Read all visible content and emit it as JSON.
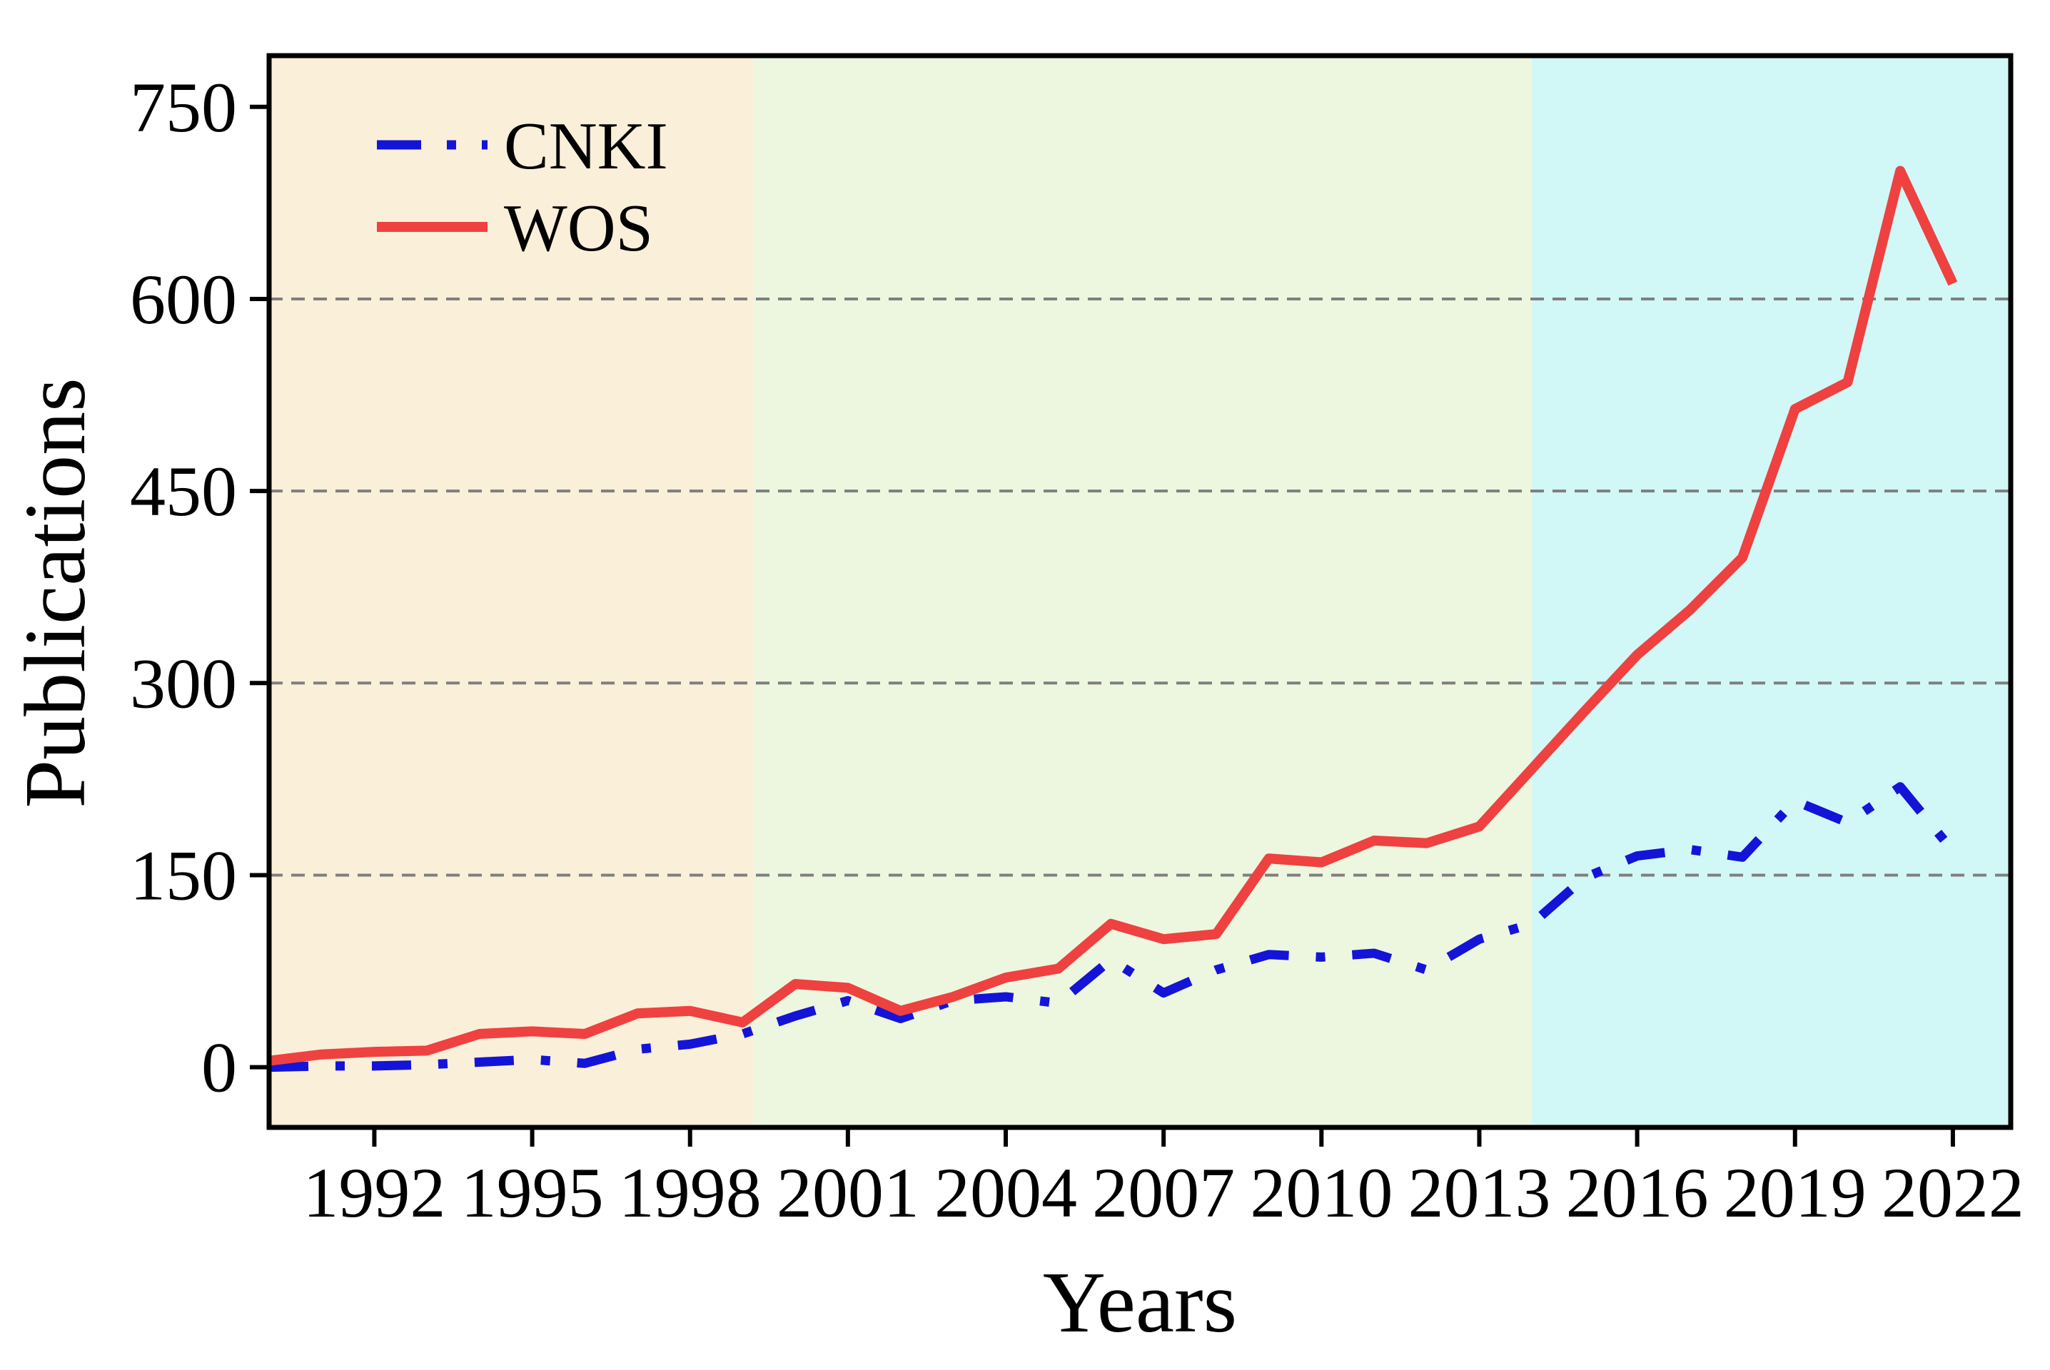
{
  "figure": {
    "kind": "publication trend line chart",
    "background": "#ffffff",
    "frame_color": "#000000",
    "gridline_color": "#7f7f7f"
  },
  "chart_data": {
    "type": "line",
    "title": "",
    "xlabel": "Years",
    "ylabel": "Publications",
    "x": [
      1990,
      1991,
      1992,
      1993,
      1994,
      1995,
      1996,
      1997,
      1998,
      1999,
      2000,
      2001,
      2002,
      2003,
      2004,
      2005,
      2006,
      2007,
      2008,
      2009,
      2010,
      2011,
      2012,
      2013,
      2014,
      2015,
      2016,
      2017,
      2018,
      2019,
      2020,
      2021,
      2022
    ],
    "series": [
      {
        "name": "CNKI",
        "color": "#1414d8",
        "line_style": "dash-dot",
        "line_width": 13,
        "values": [
          0,
          1,
          1,
          2,
          4,
          6,
          3,
          14,
          18,
          26,
          40,
          52,
          38,
          52,
          55,
          50,
          84,
          58,
          76,
          88,
          86,
          89,
          76,
          100,
          112,
          148,
          165,
          170,
          164,
          208,
          191,
          219,
          169
        ]
      },
      {
        "name": "WOS",
        "color": "#ee4140",
        "line_style": "solid",
        "line_width": 14,
        "values": [
          5,
          10,
          12,
          13,
          26,
          28,
          26,
          42,
          44,
          35,
          65,
          62,
          44,
          55,
          70,
          77,
          112,
          100,
          104,
          163,
          160,
          177,
          175,
          188,
          233,
          278,
          322,
          357,
          398,
          514,
          535,
          700,
          612
        ]
      }
    ],
    "xticks": [
      1992,
      1995,
      1998,
      2001,
      2004,
      2007,
      2010,
      2013,
      2016,
      2019,
      2022
    ],
    "yticks": [
      0,
      150,
      300,
      450,
      600,
      750
    ],
    "gridlines_y": [
      150,
      300,
      450,
      600
    ],
    "grid_style": "dashed horizontal gray",
    "xlim": [
      1990,
      2023.1
    ],
    "ylim": [
      -47,
      790
    ],
    "legend_position": "upper left",
    "background_regions": [
      {
        "from": 1990,
        "to": 1999.2,
        "color": "#faefd9"
      },
      {
        "from": 1999.2,
        "to": 2014,
        "color": "#edf7df"
      },
      {
        "from": 2014,
        "to": 2023.1,
        "color": "#d2f7f7"
      }
    ]
  }
}
